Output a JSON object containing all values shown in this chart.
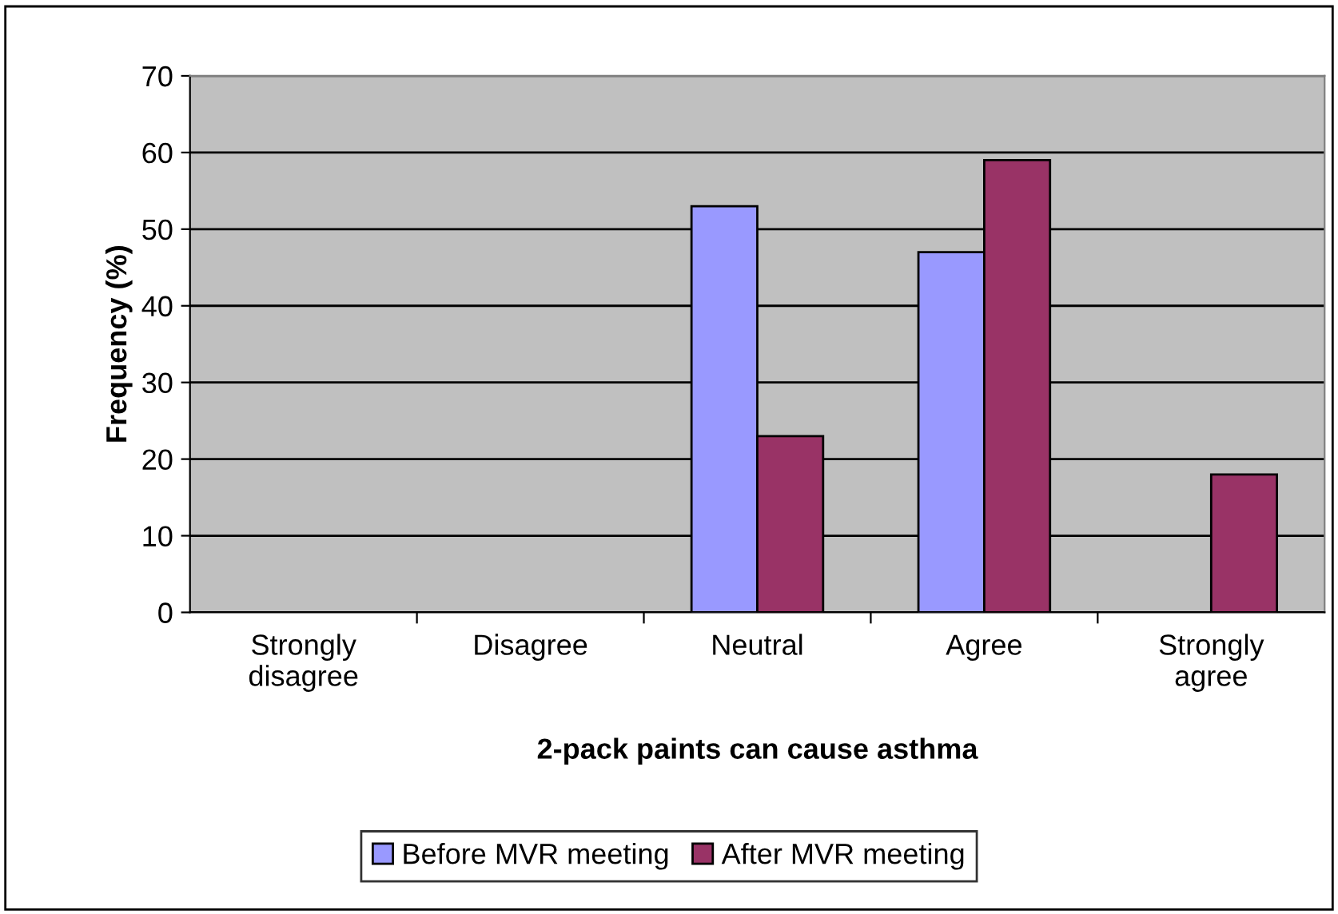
{
  "chart_data": {
    "type": "bar",
    "xlabel": "2-pack paints can cause asthma",
    "ylabel": "Frequency (%)",
    "categories": [
      "Strongly\ndisagree",
      "Disagree",
      "Neutral",
      "Agree",
      "Strongly\nagree"
    ],
    "series": [
      {
        "name": "Before MVR meeting",
        "color": "#9999ff",
        "values": [
          null,
          null,
          53,
          47,
          null
        ]
      },
      {
        "name": "After MVR meeting",
        "color": "#993366",
        "values": [
          null,
          null,
          23,
          59,
          18
        ]
      }
    ],
    "ylim": [
      0,
      70
    ],
    "yticks": [
      0,
      10,
      20,
      30,
      40,
      50,
      60,
      70
    ],
    "grid": "y",
    "legend": "bottom"
  }
}
